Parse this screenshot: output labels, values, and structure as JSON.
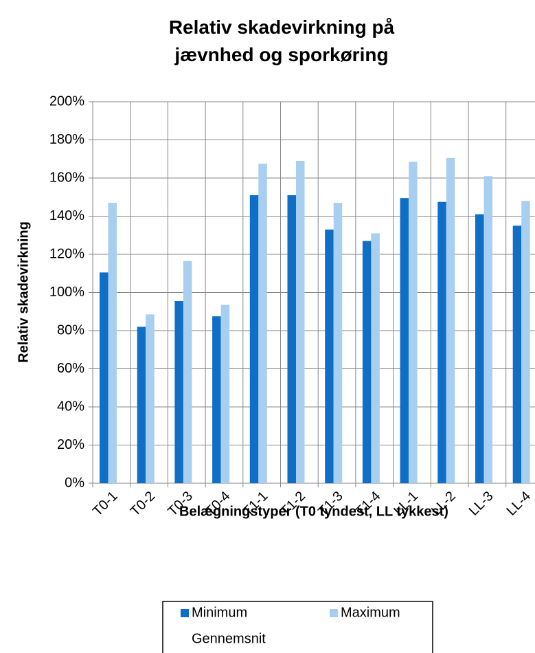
{
  "chart_data": {
    "type": "bar",
    "title": "Relativ skadevirkning på jævnhed og sporkøring",
    "x_label": "Belægningstyper (T0 tyndest, LL tykkest)",
    "y_label": "Relativ skadevirkning",
    "categories": [
      "T0-1",
      "T0-2",
      "T0-3",
      "T0-4",
      "T1-1",
      "T1-2",
      "T1-3",
      "T1-4",
      "LL-1",
      "LL-2",
      "LL-3",
      "LL-4"
    ],
    "series": [
      {
        "name": "Minimum",
        "color": "#0f6fc6",
        "values": [
          110.5,
          82,
          95.5,
          87.5,
          151,
          151,
          133,
          127,
          149.5,
          147.5,
          141,
          135
        ]
      },
      {
        "name": "Maximum",
        "color": "#a9cff0",
        "values": [
          147,
          88.5,
          116.5,
          93.5,
          167.5,
          169,
          147,
          131,
          168.5,
          170.5,
          161,
          148
        ]
      },
      {
        "name": "Gennemsnit",
        "values": [
          null,
          null,
          null,
          null,
          null,
          null,
          null,
          null,
          null,
          null,
          null,
          null
        ]
      }
    ],
    "ylim": [
      0,
      200
    ],
    "yticks": [
      {
        "value": 0,
        "label": "0%"
      },
      {
        "value": 20,
        "label": "20%"
      },
      {
        "value": 40,
        "label": "40%"
      },
      {
        "value": 60,
        "label": "60%"
      },
      {
        "value": 80,
        "label": "80%"
      },
      {
        "value": 100,
        "label": "100%"
      },
      {
        "value": 120,
        "label": "120%"
      },
      {
        "value": 140,
        "label": "140%"
      },
      {
        "value": 160,
        "label": "160%"
      },
      {
        "value": 180,
        "label": "180%"
      },
      {
        "value": 200,
        "label": "200%"
      }
    ],
    "grid": true
  }
}
